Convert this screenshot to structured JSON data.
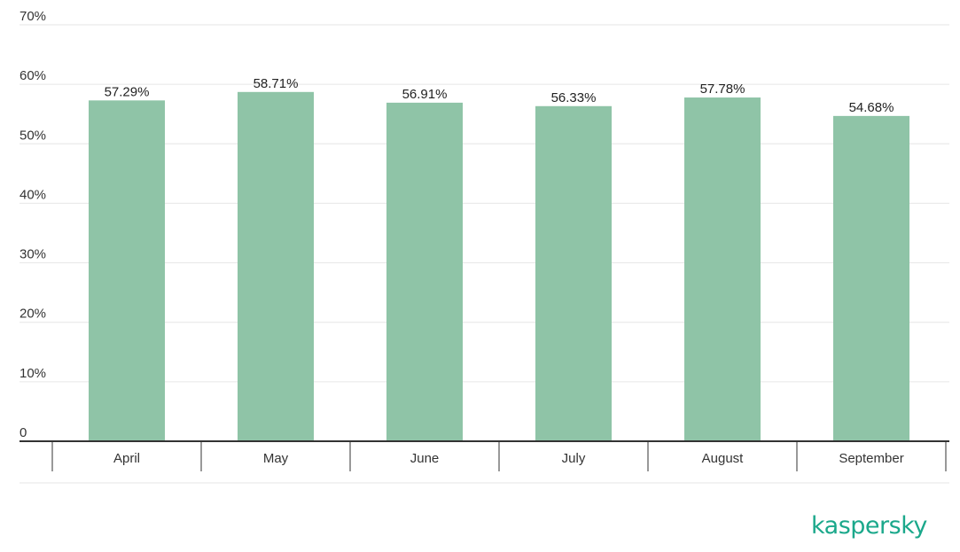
{
  "chart_data": {
    "type": "bar",
    "categories": [
      "April",
      "May",
      "June",
      "July",
      "August",
      "September"
    ],
    "values": [
      57.29,
      58.71,
      56.91,
      56.33,
      57.78,
      54.68
    ],
    "data_labels": [
      "57.29%",
      "58.71%",
      "56.91%",
      "56.33%",
      "57.78%",
      "54.68%"
    ],
    "title": "",
    "xlabel": "",
    "ylabel": "",
    "ylim": [
      0,
      70
    ],
    "yticks": [
      0,
      10,
      20,
      30,
      40,
      50,
      60,
      70
    ],
    "ytick_labels": [
      "0",
      "10%",
      "20%",
      "30%",
      "40%",
      "50%",
      "60%",
      "70%"
    ],
    "grid": true,
    "bar_color": "#8fc4a7",
    "legend": "none"
  },
  "brand": {
    "logo_text": "kaspersky",
    "color": "#1ba88b"
  }
}
